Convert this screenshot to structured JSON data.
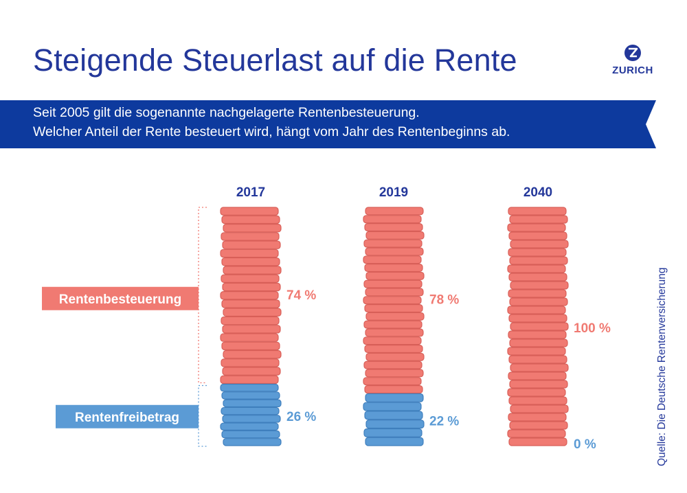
{
  "header": {
    "title": "Steigende Steuerlast auf die Rente",
    "logo_text": "ZURICH",
    "logo_icon": "zurich-z-icon",
    "brand_color": "#23379a"
  },
  "banner": {
    "line1": "Seit 2005 gilt die sogenannte nachgelagerte Rentenbesteuerung.",
    "line2": "Welcher Anteil der Rente besteuert wird, hängt vom Jahr des Rentenbeginns ab.",
    "color": "#0d3a9e"
  },
  "chart_data": {
    "type": "bar",
    "stacked": true,
    "categories": [
      "2017",
      "2019",
      "2040"
    ],
    "series": [
      {
        "name": "Rentenbesteuerung",
        "values": [
          74,
          78,
          100
        ],
        "labels": [
          "74 %",
          "78 %",
          "100 %"
        ],
        "color": "#f07a72"
      },
      {
        "name": "Rentenfreibetrag",
        "values": [
          26,
          22,
          0
        ],
        "labels": [
          "26 %",
          "22 %",
          "0 %"
        ],
        "color": "#5b9bd5"
      }
    ],
    "ylim": [
      0,
      100
    ]
  },
  "source": "Quelle: Die Deutsche Rentenversicherung"
}
